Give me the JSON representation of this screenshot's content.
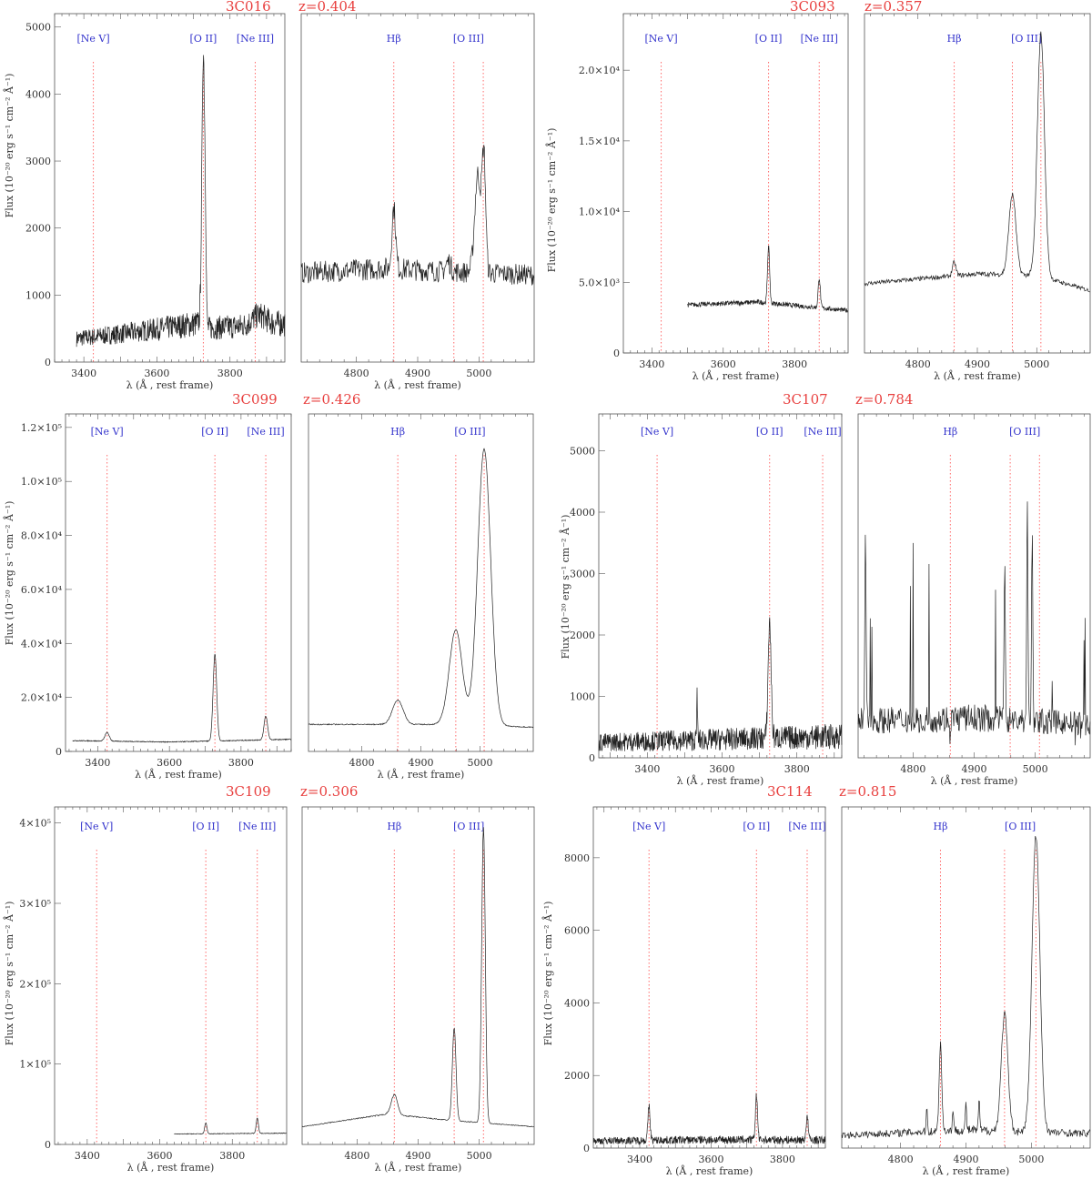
{
  "figure": {
    "xlabel": "λ (Å , rest frame)",
    "ylabel_html": "Flux (10⁻²⁰ erg s⁻¹ cm⁻² Å⁻¹)"
  },
  "chart_data": [
    {
      "type": "line",
      "name": "3C016",
      "redshift": "z=0.404",
      "left": {
        "xlim": [
          3320,
          3950
        ],
        "xticks": [
          3400,
          3600,
          3800
        ],
        "ylim": [
          0,
          5200
        ],
        "yticks": [
          0,
          1000,
          2000,
          3000,
          4000,
          5000
        ],
        "ytick_labels": [
          "0",
          "1000",
          "2000",
          "3000",
          "4000",
          "5000"
        ],
        "lines": [
          {
            "label": "[Ne V]",
            "x": 3426
          },
          {
            "label": "[O II]",
            "x": 3727
          },
          {
            "label": "[Ne III]",
            "x": 3869
          }
        ],
        "continuum": [
          [
            3380,
            350
          ],
          [
            3500,
            420
          ],
          [
            3720,
            580
          ],
          [
            3730,
            500
          ],
          [
            3950,
            580
          ]
        ],
        "noise": 0.35,
        "peaks": [
          {
            "x": 3727,
            "h": 4600,
            "w": 4
          },
          {
            "x": 3733,
            "h": 1200,
            "w": 2
          },
          {
            "x": 3880,
            "h": 700,
            "w": 18
          }
        ],
        "xstart": 3380,
        "xend": 3950
      },
      "right": {
        "xlim": [
          4710,
          5090
        ],
        "xticks": [
          4800,
          4900,
          5000
        ],
        "ylim": [
          0,
          5200
        ],
        "lines": [
          {
            "label": "Hβ",
            "x": 4861
          },
          {
            "label": "[O III]",
            "x": 4959
          },
          {
            "label": "",
            "x": 5007
          }
        ],
        "continuum": [
          [
            4710,
            1330
          ],
          [
            4850,
            1400
          ],
          [
            4950,
            1350
          ],
          [
            5090,
            1300
          ]
        ],
        "noise": 0.12,
        "peaks": [
          {
            "x": 4861,
            "h": 2300,
            "w": 3
          },
          {
            "x": 4950,
            "h": 1500,
            "w": 4
          },
          {
            "x": 4998,
            "h": 2800,
            "w": 5
          },
          {
            "x": 5008,
            "h": 3000,
            "w": 3
          }
        ],
        "xstart": 4710,
        "xend": 5090
      }
    },
    {
      "type": "line",
      "name": "3C093",
      "redshift": "z=0.357",
      "left": {
        "xlim": [
          3320,
          3950
        ],
        "xticks": [
          3400,
          3600,
          3800
        ],
        "ylim": [
          0,
          24000
        ],
        "yticks": [
          0,
          5000,
          10000,
          15000,
          20000
        ],
        "ytick_labels": [
          "0",
          "5.0×10³",
          "1.0×10⁴",
          "1.5×10⁴",
          "2.0×10⁴"
        ],
        "lines": [
          {
            "label": "[Ne V]",
            "x": 3426
          },
          {
            "label": "[O II]",
            "x": 3727
          },
          {
            "label": "[Ne III]",
            "x": 3869
          }
        ],
        "continuum": [
          [
            3500,
            3400
          ],
          [
            3700,
            3600
          ],
          [
            3950,
            3000
          ]
        ],
        "noise": 0.05,
        "peaks": [
          {
            "x": 3727,
            "h": 7500,
            "w": 3
          },
          {
            "x": 3869,
            "h": 5300,
            "w": 3
          }
        ],
        "xstart": 3500,
        "xend": 3950
      },
      "right": {
        "xlim": [
          4710,
          5090
        ],
        "xticks": [
          4800,
          4900,
          5000
        ],
        "ylim": [
          0,
          24000
        ],
        "lines": [
          {
            "label": "Hβ",
            "x": 4861
          },
          {
            "label": "[O III]",
            "x": 4959
          },
          {
            "label": "",
            "x": 5007
          }
        ],
        "continuum": [
          [
            4710,
            4900
          ],
          [
            4900,
            5600
          ],
          [
            5000,
            5500
          ],
          [
            5090,
            4400
          ]
        ],
        "noise": 0.03,
        "peaks": [
          {
            "x": 4861,
            "h": 6400,
            "w": 3
          },
          {
            "x": 4959,
            "h": 11200,
            "w": 6
          },
          {
            "x": 5007,
            "h": 22600,
            "w": 6
          }
        ],
        "xstart": 4710,
        "xend": 5090
      }
    },
    {
      "type": "line",
      "name": "3C099",
      "redshift": "z=0.426",
      "left": {
        "xlim": [
          3310,
          3940
        ],
        "xticks": [
          3400,
          3600,
          3800
        ],
        "ylim": [
          0,
          125000
        ],
        "yticks": [
          0,
          20000,
          40000,
          60000,
          80000,
          100000,
          120000
        ],
        "ytick_labels": [
          "0",
          "2.0×10⁴",
          "4.0×10⁴",
          "6.0×10⁴",
          "8.0×10⁴",
          "1.0×10⁵",
          "1.2×10⁵"
        ],
        "lines": [
          {
            "label": "[Ne V]",
            "x": 3426
          },
          {
            "label": "[O II]",
            "x": 3727
          },
          {
            "label": "[Ne III]",
            "x": 3869
          }
        ],
        "continuum": [
          [
            3330,
            4000
          ],
          [
            3600,
            3500
          ],
          [
            3940,
            4500
          ]
        ],
        "noise": 0.04,
        "peaks": [
          {
            "x": 3426,
            "h": 7000,
            "w": 6
          },
          {
            "x": 3727,
            "h": 36000,
            "w": 5
          },
          {
            "x": 3869,
            "h": 13000,
            "w": 5
          }
        ],
        "xstart": 3330,
        "xend": 3940
      },
      "right": {
        "xlim": [
          4710,
          5090
        ],
        "xticks": [
          4800,
          4900,
          5000
        ],
        "ylim": [
          0,
          125000
        ],
        "lines": [
          {
            "label": "Hβ",
            "x": 4861
          },
          {
            "label": "[O III]",
            "x": 4959
          },
          {
            "label": "",
            "x": 5007
          }
        ],
        "continuum": [
          [
            4710,
            10000
          ],
          [
            4950,
            10000
          ],
          [
            5090,
            9000
          ]
        ],
        "noise": 0.02,
        "peaks": [
          {
            "x": 4861,
            "h": 19000,
            "w": 9
          },
          {
            "x": 4959,
            "h": 45000,
            "w": 11
          },
          {
            "x": 5007,
            "h": 112000,
            "w": 11
          }
        ],
        "xstart": 4710,
        "xend": 5090
      }
    },
    {
      "type": "line",
      "name": "3C107",
      "redshift": "z=0.784",
      "left": {
        "xlim": [
          3270,
          3920
        ],
        "xticks": [
          3400,
          3600,
          3800
        ],
        "ylim": [
          0,
          5600
        ],
        "yticks": [
          0,
          1000,
          2000,
          3000,
          4000,
          5000
        ],
        "ytick_labels": [
          "0",
          "1000",
          "2000",
          "3000",
          "4000",
          "5000"
        ],
        "lines": [
          {
            "label": "[Ne V]",
            "x": 3426
          },
          {
            "label": "[O II]",
            "x": 3727
          },
          {
            "label": "[Ne III]",
            "x": 3869
          }
        ],
        "continuum": [
          [
            3270,
            250
          ],
          [
            3600,
            300
          ],
          [
            3920,
            350
          ]
        ],
        "noise": 0.6,
        "peaks": [
          {
            "x": 3533,
            "h": 1100,
            "w": 1
          },
          {
            "x": 3727,
            "h": 2200,
            "w": 4
          }
        ],
        "xstart": 3270,
        "xend": 3920
      },
      "right": {
        "xlim": [
          4710,
          5090
        ],
        "xticks": [
          4800,
          4900,
          5000
        ],
        "ylim": [
          0,
          5600
        ],
        "lines": [
          {
            "label": "Hβ",
            "x": 4861
          },
          {
            "label": "[O III]",
            "x": 4959
          },
          {
            "label": "",
            "x": 5007
          }
        ],
        "continuum": [
          [
            4710,
            600
          ],
          [
            4900,
            650
          ],
          [
            5090,
            550
          ]
        ],
        "noise": 0.35,
        "peaks": [
          {
            "x": 4987,
            "h": 4200,
            "w": 1
          },
          {
            "x": 4995,
            "h": 3700,
            "w": 1
          },
          {
            "x": 4950,
            "h": 3300,
            "w": 1
          },
          {
            "x": 4722,
            "h": 3600,
            "w": 1
          }
        ],
        "spiky": true,
        "xstart": 4710,
        "xend": 5090
      }
    },
    {
      "type": "line",
      "name": "3C109",
      "redshift": "z=0.306",
      "left": {
        "xlim": [
          3310,
          3950
        ],
        "xticks": [
          3400,
          3600,
          3800
        ],
        "ylim": [
          0,
          420000
        ],
        "yticks": [
          0,
          100000,
          200000,
          300000,
          400000
        ],
        "ytick_labels": [
          "0",
          "1×10⁵",
          "2×10⁵",
          "3×10⁵",
          "4×10⁵"
        ],
        "lines": [
          {
            "label": "[Ne V]",
            "x": 3426
          },
          {
            "label": "[O II]",
            "x": 3727
          },
          {
            "label": "[Ne III]",
            "x": 3869
          }
        ],
        "continuum": [
          [
            3640,
            13000
          ],
          [
            3950,
            14000
          ]
        ],
        "noise": 0.03,
        "peaks": [
          {
            "x": 3727,
            "h": 27000,
            "w": 3
          },
          {
            "x": 3869,
            "h": 33000,
            "w": 3
          }
        ],
        "xstart": 3640,
        "xend": 3950
      },
      "right": {
        "xlim": [
          4710,
          5090
        ],
        "xticks": [
          4800,
          4900,
          5000
        ],
        "ylim": [
          0,
          420000
        ],
        "lines": [
          {
            "label": "Hβ",
            "x": 4861
          },
          {
            "label": "[O III]",
            "x": 4959
          },
          {
            "label": "",
            "x": 5007
          }
        ],
        "continuum": [
          [
            4710,
            22000
          ],
          [
            4850,
            38000
          ],
          [
            4950,
            30000
          ],
          [
            5090,
            22000
          ]
        ],
        "noise": 0.02,
        "peaks": [
          {
            "x": 4861,
            "h": 62000,
            "w": 5
          },
          {
            "x": 4959,
            "h": 145000,
            "w": 3
          },
          {
            "x": 5007,
            "h": 395000,
            "w": 3
          }
        ],
        "xstart": 4710,
        "xend": 5090
      }
    },
    {
      "type": "line",
      "name": "3C114",
      "redshift": "z=0.815",
      "left": {
        "xlim": [
          3270,
          3920
        ],
        "xticks": [
          3400,
          3600,
          3800
        ],
        "ylim": [
          0,
          9400
        ],
        "yticks": [
          0,
          2000,
          4000,
          6000,
          8000
        ],
        "ytick_labels": [
          "0",
          "2000",
          "4000",
          "6000",
          "8000"
        ],
        "lines": [
          {
            "label": "[Ne V]",
            "x": 3426
          },
          {
            "label": "[O II]",
            "x": 3727
          },
          {
            "label": "[Ne III]",
            "x": 3869
          }
        ],
        "continuum": [
          [
            3270,
            200
          ],
          [
            3600,
            230
          ],
          [
            3920,
            220
          ]
        ],
        "noise": 0.5,
        "peaks": [
          {
            "x": 3426,
            "h": 1150,
            "w": 3
          },
          {
            "x": 3727,
            "h": 1450,
            "w": 3
          },
          {
            "x": 3869,
            "h": 850,
            "w": 3
          }
        ],
        "xstart": 3270,
        "xend": 3920
      },
      "right": {
        "xlim": [
          4710,
          5090
        ],
        "xticks": [
          4800,
          4900,
          5000
        ],
        "ylim": [
          0,
          9400
        ],
        "lines": [
          {
            "label": "Hβ",
            "x": 4861
          },
          {
            "label": "[O III]",
            "x": 4959
          },
          {
            "label": "",
            "x": 5007
          }
        ],
        "continuum": [
          [
            4710,
            350
          ],
          [
            4900,
            500
          ],
          [
            5090,
            400
          ]
        ],
        "noise": 0.25,
        "peaks": [
          {
            "x": 4861,
            "h": 2900,
            "w": 2
          },
          {
            "x": 4959,
            "h": 3700,
            "w": 5
          },
          {
            "x": 5007,
            "h": 8600,
            "w": 6
          },
          {
            "x": 4840,
            "h": 1100,
            "w": 1
          },
          {
            "x": 4880,
            "h": 1050,
            "w": 1
          },
          {
            "x": 4900,
            "h": 1200,
            "w": 1
          },
          {
            "x": 4920,
            "h": 1350,
            "w": 1
          }
        ],
        "xstart": 4710,
        "xend": 5090
      }
    }
  ]
}
